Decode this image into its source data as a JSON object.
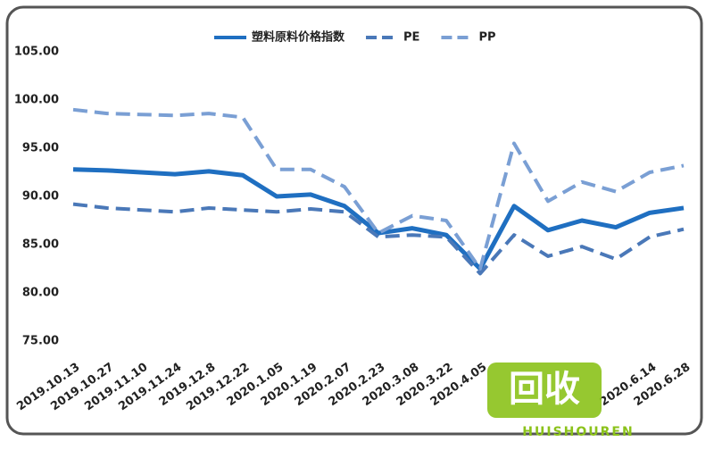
{
  "chart_data": {
    "type": "line",
    "categories": [
      "2019.10.13",
      "2019.10.27",
      "2019.11.10",
      "2019.11.24",
      "2019.12.8",
      "2019.12.22",
      "2020.1.05",
      "2020.1.19",
      "2020.2.07",
      "2020.2.23",
      "2020.3.08",
      "2020.3.22",
      "2020.4.05",
      null,
      null,
      null,
      null,
      "2020.6.14",
      "2020.6.28"
    ],
    "series": [
      {
        "name": "塑料原料价格指数",
        "color": "#1f6fc1",
        "dash": false,
        "values": [
          92.8,
          92.7,
          92.5,
          92.3,
          92.6,
          92.2,
          90.0,
          90.2,
          89.0,
          86.2,
          86.7,
          86.0,
          82.5,
          89.0,
          86.5,
          87.5,
          86.8,
          88.3,
          88.8
        ]
      },
      {
        "name": "PE",
        "color": "#4a78b8",
        "dash": true,
        "values": [
          89.2,
          88.8,
          88.6,
          88.4,
          88.8,
          88.6,
          88.4,
          88.7,
          88.4,
          85.8,
          86.0,
          85.8,
          82.0,
          86.0,
          83.8,
          84.8,
          83.5,
          85.8,
          86.6
        ]
      },
      {
        "name": "PP",
        "color": "#7a9fd4",
        "dash": true,
        "values": [
          99.0,
          98.6,
          98.5,
          98.4,
          98.6,
          98.2,
          92.8,
          92.8,
          91.0,
          86.2,
          88.0,
          87.5,
          82.5,
          95.5,
          89.5,
          91.5,
          90.5,
          92.5,
          93.2
        ]
      }
    ],
    "ylim": [
      75,
      105
    ],
    "yticks": [
      {
        "value": 75,
        "label": "75.00"
      },
      {
        "value": 80,
        "label": "80.00"
      },
      {
        "value": 85,
        "label": "85.00"
      },
      {
        "value": 90,
        "label": "90.00"
      },
      {
        "value": 95,
        "label": "95.00"
      },
      {
        "value": 100,
        "label": "100.00"
      },
      {
        "value": 105,
        "label": "105.00"
      }
    ],
    "legend": "top",
    "watermark": {
      "main": "回收",
      "sub": "HUISHOUREN"
    }
  }
}
